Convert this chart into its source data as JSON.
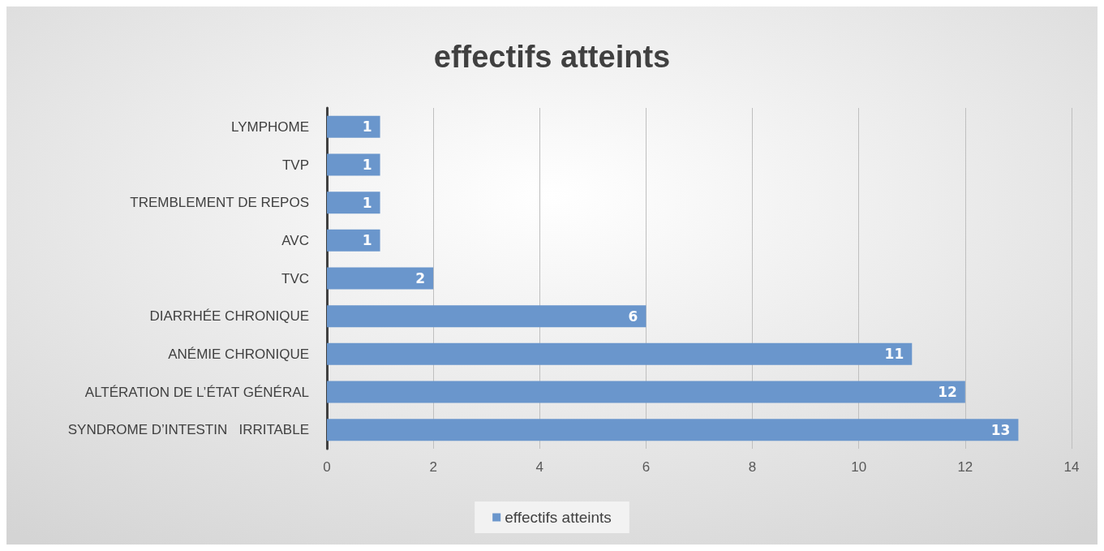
{
  "chart_data": {
    "type": "bar",
    "orientation": "horizontal",
    "title": "effectifs atteints",
    "categories": [
      "LYMPHOME",
      "TVP",
      "TREMBLEMENT DE REPOS",
      "AVC",
      "TVC",
      "DIARRHÉE CHRONIQUE",
      "ANÉMIE CHRONIQUE",
      "ALTÉRATION DE L’ÉTAT GÉNÉRAL",
      "SYNDROME D’INTESTIN   IRRITABLE"
    ],
    "series": [
      {
        "name": "effectifs atteints",
        "color": "#6a96cc",
        "values": [
          1,
          1,
          1,
          1,
          2,
          6,
          11,
          12,
          13
        ]
      }
    ],
    "xlim": [
      0,
      14
    ],
    "xticks": [
      0,
      2,
      4,
      6,
      8,
      10,
      12,
      14
    ],
    "grid": "x",
    "legend": "bottom",
    "data_labels": true
  }
}
